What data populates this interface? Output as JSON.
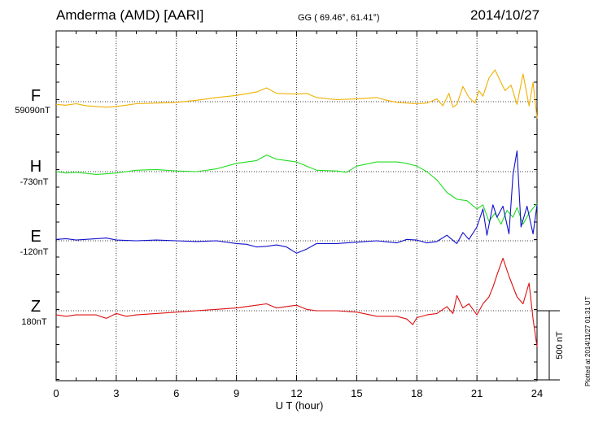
{
  "header": {
    "station": "Amderma (AMD)  [AARI]",
    "coords": "GG ( 69.46°,  61.41°)",
    "date": "2014/10/27"
  },
  "plotted_note": "Plotted at 2014/11/27 01:31 UT",
  "scale_bar_label": "500 nT",
  "colors": {
    "F": "#f0b000",
    "H": "#22dd22",
    "E": "#1010cc",
    "Z": "#dd1010"
  },
  "chart_data": {
    "type": "line",
    "xlabel": "U T (hour)",
    "xlim": [
      0,
      24
    ],
    "xticks": [
      0,
      3,
      6,
      9,
      12,
      15,
      18,
      21,
      24
    ],
    "xtick_labels": [
      "0",
      "3",
      "6",
      "9",
      "12",
      "15",
      "18",
      "21",
      "24"
    ],
    "y_units": "nT (relative to each trace baseline)",
    "scale_nT": 500,
    "grid": true,
    "series": [
      {
        "name": "F",
        "baseline_label": "59090nT",
        "points": [
          [
            0,
            -20
          ],
          [
            0.5,
            -25
          ],
          [
            1,
            -15
          ],
          [
            1.5,
            -30
          ],
          [
            2,
            -35
          ],
          [
            2.5,
            -40
          ],
          [
            3,
            -35
          ],
          [
            3.5,
            -25
          ],
          [
            4,
            -15
          ],
          [
            5,
            -10
          ],
          [
            6,
            -5
          ],
          [
            7,
            10
          ],
          [
            8,
            30
          ],
          [
            9,
            45
          ],
          [
            10,
            70
          ],
          [
            10.5,
            100
          ],
          [
            11,
            60
          ],
          [
            12,
            55
          ],
          [
            12.5,
            60
          ],
          [
            13,
            30
          ],
          [
            14,
            15
          ],
          [
            15,
            20
          ],
          [
            16,
            30
          ],
          [
            16.5,
            10
          ],
          [
            17,
            -5
          ],
          [
            18,
            -15
          ],
          [
            18.5,
            -10
          ],
          [
            19,
            20
          ],
          [
            19.3,
            -30
          ],
          [
            19.6,
            60
          ],
          [
            19.8,
            -40
          ],
          [
            20,
            -20
          ],
          [
            20.3,
            110
          ],
          [
            20.6,
            30
          ],
          [
            20.9,
            -10
          ],
          [
            21.1,
            80
          ],
          [
            21.3,
            40
          ],
          [
            21.6,
            170
          ],
          [
            21.9,
            230
          ],
          [
            22.1,
            170
          ],
          [
            22.4,
            80
          ],
          [
            22.7,
            120
          ],
          [
            23,
            -20
          ],
          [
            23.3,
            200
          ],
          [
            23.6,
            -30
          ],
          [
            23.8,
            140
          ],
          [
            24,
            -120
          ]
        ]
      },
      {
        "name": "H",
        "baseline_label": "-730nT",
        "points": [
          [
            0,
            0
          ],
          [
            0.5,
            -10
          ],
          [
            1,
            -5
          ],
          [
            2,
            -20
          ],
          [
            2.5,
            -15
          ],
          [
            3,
            -10
          ],
          [
            3.5,
            0
          ],
          [
            4,
            10
          ],
          [
            5,
            15
          ],
          [
            6,
            5
          ],
          [
            7,
            0
          ],
          [
            8,
            20
          ],
          [
            9,
            60
          ],
          [
            10,
            80
          ],
          [
            10.5,
            120
          ],
          [
            11,
            90
          ],
          [
            12,
            70
          ],
          [
            12.5,
            40
          ],
          [
            13,
            10
          ],
          [
            14,
            5
          ],
          [
            14.5,
            -5
          ],
          [
            15,
            40
          ],
          [
            16,
            70
          ],
          [
            17,
            70
          ],
          [
            17.5,
            60
          ],
          [
            18,
            40
          ],
          [
            18.5,
            0
          ],
          [
            19,
            -60
          ],
          [
            19.5,
            -150
          ],
          [
            20,
            -200
          ],
          [
            20.5,
            -210
          ],
          [
            21,
            -270
          ],
          [
            21.3,
            -240
          ],
          [
            21.6,
            -360
          ],
          [
            21.9,
            -300
          ],
          [
            22.2,
            -380
          ],
          [
            22.5,
            -280
          ],
          [
            22.8,
            -330
          ],
          [
            23,
            -260
          ],
          [
            23.3,
            -380
          ],
          [
            23.6,
            -300
          ],
          [
            24,
            -230
          ]
        ]
      },
      {
        "name": "E",
        "baseline_label": "-120nT",
        "points": [
          [
            0,
            10
          ],
          [
            0.5,
            15
          ],
          [
            1,
            5
          ],
          [
            2,
            15
          ],
          [
            2.5,
            20
          ],
          [
            3,
            5
          ],
          [
            4,
            0
          ],
          [
            5,
            5
          ],
          [
            6,
            0
          ],
          [
            7,
            -5
          ],
          [
            8,
            0
          ],
          [
            9,
            -20
          ],
          [
            9.5,
            -25
          ],
          [
            10,
            -45
          ],
          [
            10.5,
            -40
          ],
          [
            11,
            -30
          ],
          [
            11.5,
            -45
          ],
          [
            12,
            -90
          ],
          [
            12.5,
            -60
          ],
          [
            13,
            -20
          ],
          [
            14,
            -20
          ],
          [
            15,
            -10
          ],
          [
            16,
            0
          ],
          [
            17,
            -15
          ],
          [
            17.5,
            10
          ],
          [
            18,
            5
          ],
          [
            18.5,
            -15
          ],
          [
            19,
            -5
          ],
          [
            19.5,
            40
          ],
          [
            20,
            -20
          ],
          [
            20.3,
            60
          ],
          [
            20.6,
            10
          ],
          [
            21,
            100
          ],
          [
            21.3,
            230
          ],
          [
            21.5,
            40
          ],
          [
            21.8,
            260
          ],
          [
            22,
            170
          ],
          [
            22.3,
            250
          ],
          [
            22.6,
            50
          ],
          [
            22.8,
            480
          ],
          [
            23,
            650
          ],
          [
            23.2,
            100
          ],
          [
            23.5,
            250
          ],
          [
            23.8,
            50
          ],
          [
            24,
            260
          ]
        ]
      },
      {
        "name": "Z",
        "baseline_label": "180nT",
        "points": [
          [
            0,
            -30
          ],
          [
            0.5,
            -40
          ],
          [
            1,
            -30
          ],
          [
            2,
            -30
          ],
          [
            2.5,
            -55
          ],
          [
            3,
            -20
          ],
          [
            3.5,
            -40
          ],
          [
            4,
            -30
          ],
          [
            5,
            -20
          ],
          [
            6,
            -10
          ],
          [
            7,
            0
          ],
          [
            8,
            10
          ],
          [
            9,
            20
          ],
          [
            10,
            40
          ],
          [
            10.5,
            50
          ],
          [
            11,
            20
          ],
          [
            12,
            40
          ],
          [
            12.5,
            10
          ],
          [
            13,
            0
          ],
          [
            14,
            0
          ],
          [
            15,
            -10
          ],
          [
            16,
            -40
          ],
          [
            17,
            -40
          ],
          [
            17.5,
            -60
          ],
          [
            17.8,
            -100
          ],
          [
            18,
            -50
          ],
          [
            18.5,
            -30
          ],
          [
            19,
            -20
          ],
          [
            19.5,
            30
          ],
          [
            19.8,
            -20
          ],
          [
            20,
            110
          ],
          [
            20.3,
            20
          ],
          [
            20.6,
            50
          ],
          [
            21,
            -30
          ],
          [
            21.3,
            50
          ],
          [
            21.6,
            100
          ],
          [
            21.8,
            170
          ],
          [
            22,
            260
          ],
          [
            22.3,
            380
          ],
          [
            22.6,
            250
          ],
          [
            23,
            100
          ],
          [
            23.3,
            50
          ],
          [
            23.6,
            200
          ],
          [
            23.8,
            -60
          ],
          [
            24,
            -260
          ]
        ]
      }
    ]
  }
}
